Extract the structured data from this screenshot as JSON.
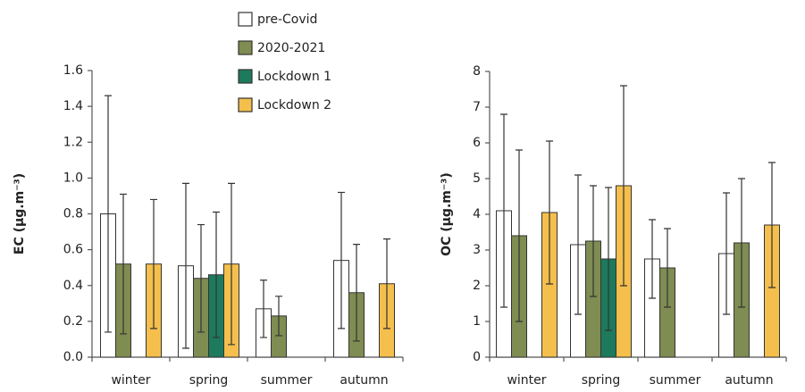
{
  "chart_data": [
    {
      "type": "bar",
      "ylabel": "EC (µg.m⁻³)",
      "categories": [
        "winter",
        "spring",
        "summer",
        "autumn"
      ],
      "ylim": [
        0,
        1.6
      ],
      "yticks": [
        {
          "value": 0,
          "label": "0.0"
        },
        0.2,
        0.4,
        0.6,
        0.8,
        {
          "value": 1,
          "label": "1.0"
        },
        1.2,
        1.4,
        1.6
      ],
      "series": [
        {
          "name": "pre-Covid",
          "color": "#ffffff",
          "values": [
            0.8,
            0.51,
            0.27,
            0.54
          ],
          "errors": [
            0.66,
            0.46,
            0.16,
            0.38
          ]
        },
        {
          "name": "2020-2021",
          "color": "#7f8c52",
          "values": [
            0.52,
            0.44,
            0.23,
            0.36
          ],
          "errors": [
            0.39,
            0.3,
            0.11,
            0.27
          ]
        },
        {
          "name": "Lockdown 1",
          "color": "#1d7a5c",
          "values": [
            null,
            0.46,
            null,
            null
          ],
          "errors": [
            null,
            0.35,
            null,
            null
          ]
        },
        {
          "name": "Lockdown 2",
          "color": "#f4bf4c",
          "values": [
            0.52,
            0.52,
            null,
            0.41
          ],
          "errors": [
            0.36,
            0.45,
            null,
            0.25
          ]
        }
      ]
    },
    {
      "type": "bar",
      "ylabel": "OC (µg.m⁻³)",
      "categories": [
        "winter",
        "spring",
        "summer",
        "autumn"
      ],
      "ylim": [
        0,
        8
      ],
      "yticks": [
        0,
        1,
        2,
        3,
        4,
        5,
        6,
        7,
        8
      ],
      "series": [
        {
          "color": "#ffffff",
          "values": [
            4.1,
            3.15,
            2.75,
            2.9
          ],
          "errors": [
            2.7,
            1.95,
            1.1,
            1.7
          ]
        },
        {
          "color": "#7f8c52",
          "values": [
            3.4,
            3.25,
            2.5,
            3.2
          ],
          "errors": [
            2.4,
            1.55,
            1.1,
            1.8
          ]
        },
        {
          "color": "#1d7a5c",
          "values": [
            null,
            2.75,
            null,
            null
          ],
          "errors": [
            null,
            2.0,
            null,
            null
          ]
        },
        {
          "color": "#f4bf4c",
          "values": [
            4.05,
            4.8,
            null,
            3.7
          ],
          "errors": [
            2.0,
            2.8,
            null,
            1.75
          ]
        }
      ]
    }
  ]
}
